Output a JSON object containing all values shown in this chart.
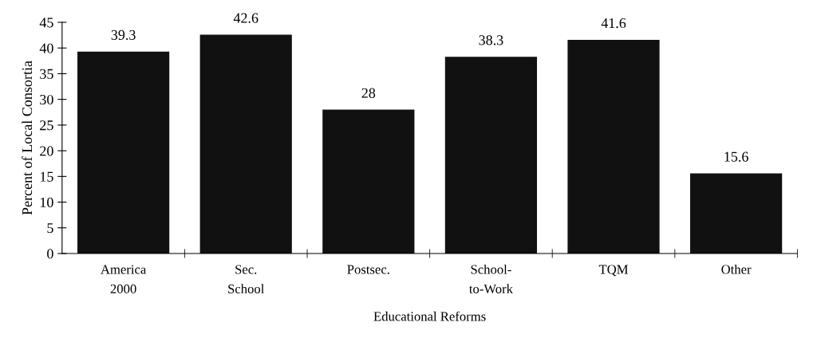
{
  "chart_data": {
    "type": "bar",
    "xlabel": "Educational Reforms",
    "ylabel": "Percent of Local Consortia",
    "categories": [
      "America\n2000",
      "Sec.\nSchool",
      "Postsec.",
      "School-\nto-Work",
      "TQM",
      "Other"
    ],
    "values": [
      39.3,
      42.6,
      28,
      38.3,
      41.6,
      15.6
    ],
    "color": "#111111",
    "ylim": [
      0,
      45
    ],
    "yticks": [
      0,
      5,
      10,
      15,
      20,
      25,
      30,
      35,
      40,
      45
    ],
    "grid": false,
    "data_labels": true
  }
}
